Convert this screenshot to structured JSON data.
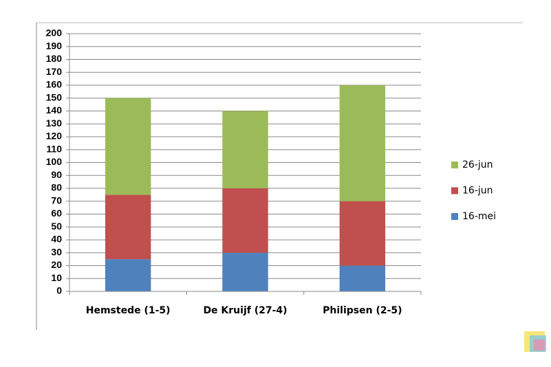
{
  "chart_data": {
    "type": "bar",
    "stacked": true,
    "categories": [
      "Hemstede (1-5)",
      "De Kruijf (27-4)",
      "Philipsen (2-5)"
    ],
    "series": [
      {
        "name": "16-mei",
        "color": "#4f81bd",
        "values": [
          25,
          30,
          20
        ]
      },
      {
        "name": "16-jun",
        "color": "#c0504d",
        "values": [
          50,
          50,
          50
        ]
      },
      {
        "name": "26-jun",
        "color": "#9bbb59",
        "values": [
          75,
          60,
          90
        ]
      }
    ],
    "ylim": [
      0,
      200
    ],
    "yticks": [
      0,
      10,
      20,
      30,
      40,
      50,
      60,
      70,
      80,
      90,
      100,
      110,
      120,
      130,
      140,
      150,
      160,
      170,
      180,
      190,
      200
    ],
    "grid": true,
    "legend": "right"
  }
}
